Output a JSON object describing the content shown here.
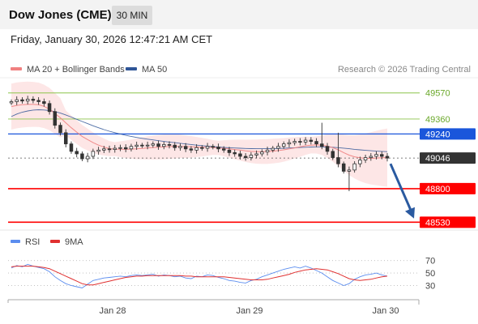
{
  "header": {
    "title": "Dow Jones (CME)",
    "timeframe": "30 MIN",
    "datetime": "Friday, January 30, 2026 12:47:21 AM CET"
  },
  "legend_main": {
    "ma20_label": "MA 20 + Bollinger Bands",
    "ma50_label": "MA 50",
    "credit": "Research © 2026 Trading Central"
  },
  "legend_rsi": {
    "rsi_label": "RSI",
    "ma9_label": "9MA"
  },
  "colors": {
    "ma20": "#f08080",
    "bollinger_fill": "#fde3e3",
    "ma50": "#2f5597",
    "candle": "#333333",
    "green_level": "#8bc34a",
    "blue_level": "#1a56db",
    "red_level": "#ff0000",
    "current_price": "#333333",
    "arrow": "#2a5aa0",
    "rsi": "#5b8def",
    "rsi_ma": "#e03030"
  },
  "chart_data": [
    {
      "type": "line",
      "subtype": "candlestick",
      "title": "",
      "x_tick_labels": [
        "Jan 28",
        "Jan 29",
        "Jan 30"
      ],
      "ylim": [
        48480,
        49640
      ],
      "price_levels": [
        {
          "value": 49570,
          "label": "49570",
          "style": "green"
        },
        {
          "value": 49360,
          "label": "49360",
          "style": "green"
        },
        {
          "value": 49240,
          "label": "49240",
          "style": "blue"
        },
        {
          "value": 49046,
          "label": "49046",
          "style": "current"
        },
        {
          "value": 48800,
          "label": "48800",
          "style": "red"
        },
        {
          "value": 48530,
          "label": "48530",
          "style": "red"
        }
      ],
      "close_series": [
        49500,
        49515,
        49505,
        49520,
        49510,
        49500,
        49485,
        49420,
        49310,
        49250,
        49160,
        49100,
        49080,
        49040,
        49060,
        49100,
        49110,
        49120,
        49115,
        49125,
        49130,
        49120,
        49140,
        49150,
        49145,
        49150,
        49160,
        49140,
        49155,
        49150,
        49130,
        49140,
        49120,
        49110,
        49130,
        49125,
        49140,
        49135,
        49120,
        49110,
        49090,
        49080,
        49060,
        49050,
        49070,
        49080,
        49095,
        49110,
        49125,
        49140,
        49160,
        49170,
        49180,
        49175,
        49190,
        49180,
        49160,
        49140,
        49100,
        49050,
        49000,
        48940,
        48950,
        49000,
        49030,
        49050,
        49060,
        49075,
        49060,
        49046
      ],
      "series": [
        {
          "name": "MA 20",
          "values": [
            49460,
            49470,
            49475,
            49478,
            49478,
            49475,
            49462,
            49440,
            49405,
            49370,
            49330,
            49290,
            49255,
            49220,
            49195,
            49170,
            49150,
            49135,
            49122,
            49118,
            49117,
            49116,
            49118,
            49120,
            49124,
            49128,
            49131,
            49133,
            49136,
            49139,
            49140,
            49140,
            49138,
            49136,
            49135,
            49134,
            49133,
            49131,
            49128,
            49125,
            49120,
            49115,
            49110,
            49104,
            49100,
            49098,
            49098,
            49099,
            49102,
            49106,
            49112,
            49120,
            49128,
            49136,
            49145,
            49150,
            49152,
            49150,
            49142,
            49130,
            49112,
            49090,
            49070,
            49056,
            49048,
            49044,
            49044,
            49046,
            49048,
            49050
          ]
        },
        {
          "name": "MA 50",
          "values": [
            49380,
            49400,
            49415,
            49425,
            49432,
            49435,
            49433,
            49428,
            49420,
            49408,
            49393,
            49376,
            49358,
            49340,
            49323,
            49306,
            49290,
            49275,
            49262,
            49250,
            49239,
            49229,
            49220,
            49212,
            49205,
            49198,
            49192,
            49186,
            49180,
            49175,
            49170,
            49165,
            49160,
            49155,
            49150,
            49146,
            49142,
            49138,
            49135,
            49132,
            49129,
            49127,
            49125,
            49123,
            49122,
            49121,
            49121,
            49121,
            49122,
            49123,
            49125,
            49127,
            49129,
            49131,
            49133,
            49135,
            49136,
            49136,
            49135,
            49133,
            49130,
            49126,
            49121,
            49116,
            49112,
            49108,
            49105,
            49102,
            49100,
            49098
          ]
        }
      ],
      "legend": [
        "MA 20 + Bollinger Bands",
        "MA 50"
      ]
    },
    {
      "type": "line",
      "title": "",
      "ylim": [
        15,
        80
      ],
      "y_tick_labels": [
        "70",
        "50",
        "30"
      ],
      "series": [
        {
          "name": "RSI",
          "values": [
            58,
            62,
            60,
            64,
            61,
            59,
            57,
            52,
            44,
            38,
            33,
            30,
            28,
            26,
            32,
            38,
            40,
            42,
            43,
            44,
            45,
            44,
            46,
            47,
            46,
            47,
            48,
            45,
            47,
            46,
            44,
            45,
            42,
            41,
            45,
            44,
            47,
            46,
            43,
            41,
            38,
            37,
            35,
            34,
            38,
            40,
            44,
            47,
            50,
            53,
            56,
            58,
            60,
            58,
            61,
            58,
            54,
            50,
            44,
            38,
            34,
            30,
            33,
            40,
            44,
            47,
            48,
            50,
            47,
            45
          ]
        },
        {
          "name": "9MA",
          "values": [
            60,
            61,
            61,
            61,
            61,
            60,
            59,
            57,
            53,
            49,
            45,
            41,
            37,
            33,
            31,
            31,
            33,
            35,
            37,
            39,
            41,
            43,
            44,
            45,
            45,
            46,
            46,
            46,
            46,
            46,
            46,
            46,
            45,
            45,
            44,
            44,
            44,
            44,
            44,
            44,
            43,
            42,
            41,
            40,
            39,
            39,
            39,
            40,
            42,
            44,
            46,
            48,
            51,
            53,
            55,
            56,
            57,
            56,
            55,
            52,
            49,
            45,
            41,
            39,
            38,
            39,
            40,
            42,
            44,
            45
          ]
        }
      ],
      "legend": [
        "RSI",
        "9MA"
      ]
    }
  ]
}
